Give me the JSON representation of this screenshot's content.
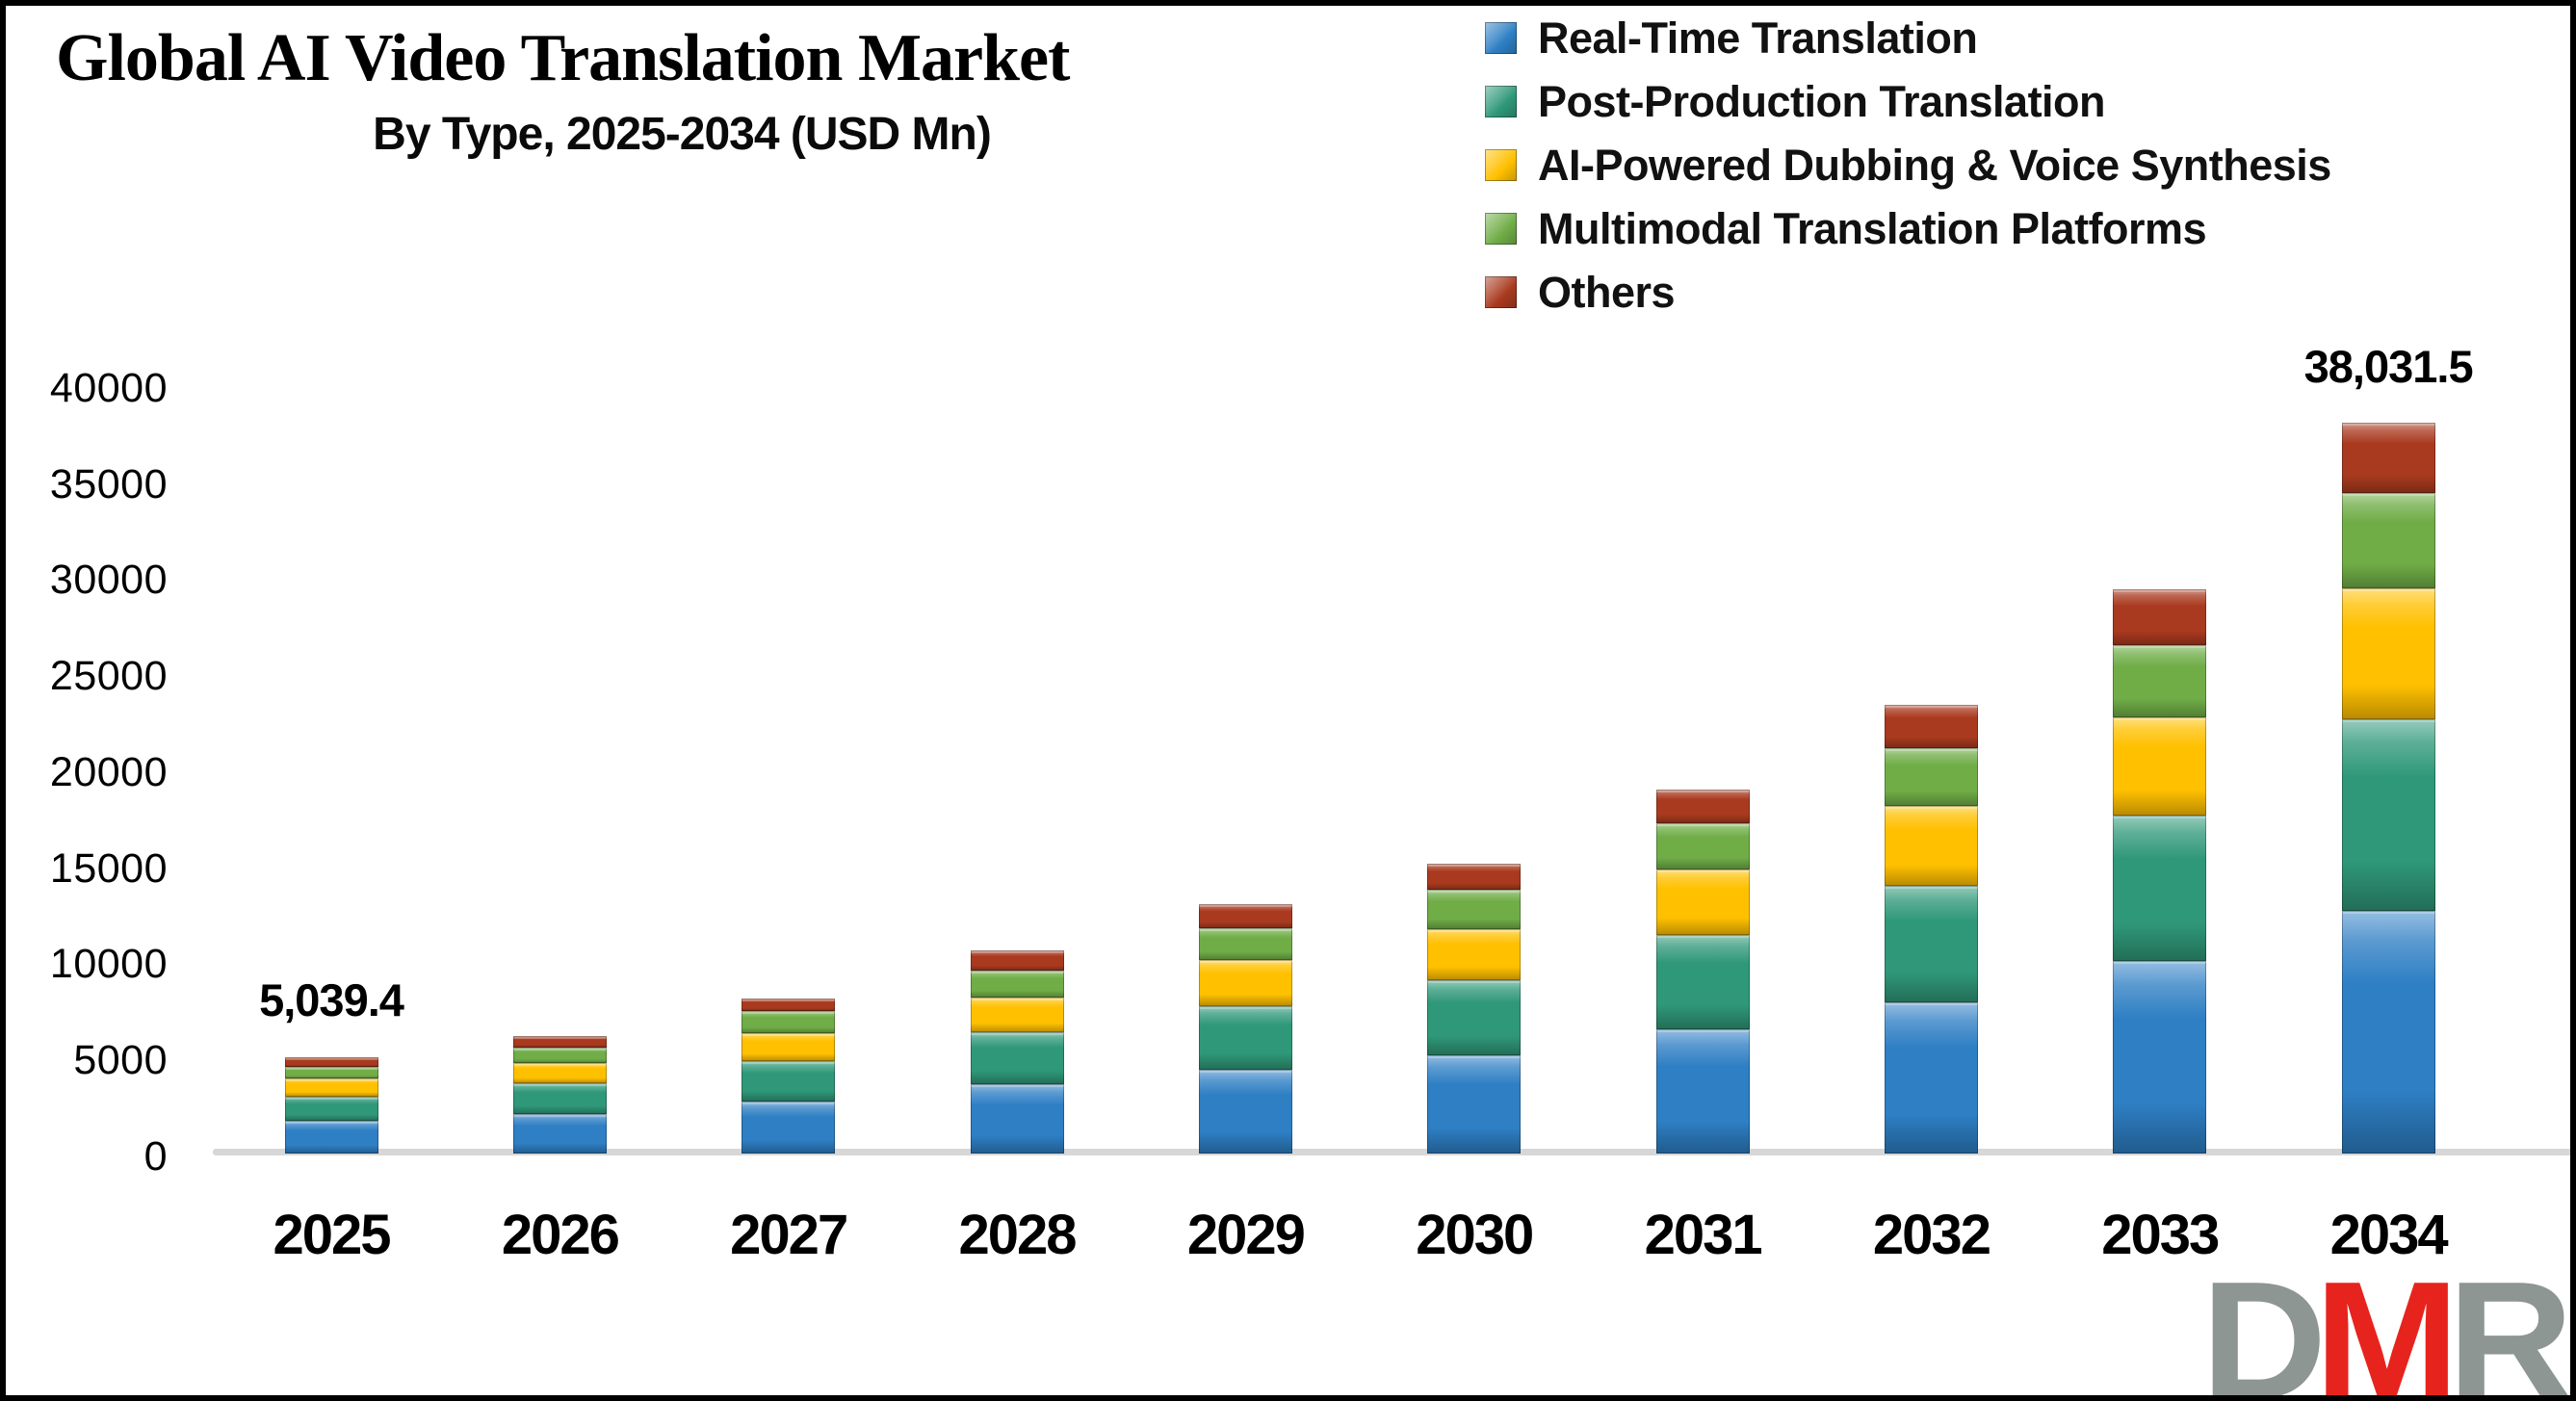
{
  "header": {
    "title": "Global AI Video Translation Market",
    "subtitle": "By Type, 2025-2034 (USD Mn)"
  },
  "legend": {
    "position": "top-right",
    "items": [
      {
        "label": "Real-Time Translation",
        "color": "#2E7FC4"
      },
      {
        "label": "Post-Production Translation",
        "color": "#2F9878"
      },
      {
        "label": "AI-Powered Dubbing & Voice Synthesis",
        "color": "#FFC000"
      },
      {
        "label": "Multimodal Translation Platforms",
        "color": "#70AD47"
      },
      {
        "label": "Others",
        "color": "#A93A1F"
      }
    ]
  },
  "chart_data": {
    "type": "bar",
    "stacked": true,
    "title": "Global AI Video Translation Market",
    "subtitle": "By Type, 2025-2034 (USD Mn)",
    "unit": "USD Mn",
    "categories": [
      "2025",
      "2026",
      "2027",
      "2028",
      "2029",
      "2030",
      "2031",
      "2032",
      "2033",
      "2034"
    ],
    "series": [
      {
        "name": "Real-Time Translation",
        "color": "#2E7FC4",
        "values": [
          1725,
          2060,
          2690,
          3595,
          4350,
          5105,
          6475,
          7865,
          10040,
          12620
        ]
      },
      {
        "name": "Post-Production Translation",
        "color": "#2F9878",
        "values": [
          1220,
          1620,
          2130,
          2730,
          3310,
          3930,
          4900,
          6055,
          7530,
          9990
        ]
      },
      {
        "name": "AI-Powered Dubbing & Voice Synthesis",
        "color": "#FFC000",
        "values": [
          955,
          1055,
          1455,
          1785,
          2410,
          2625,
          3430,
          4185,
          5135,
          6830
        ]
      },
      {
        "name": "Multimodal Translation Platforms",
        "color": "#70AD47",
        "values": [
          622,
          790,
          1135,
          1425,
          1670,
          2060,
          2375,
          3010,
          3785,
          4970
        ]
      },
      {
        "name": "Others",
        "color": "#A93A1F",
        "values": [
          517.4,
          580,
          675,
          1055,
          1255,
          1390,
          1775,
          2225,
          2875,
          3621.5
        ]
      }
    ],
    "totals": [
      5039.4,
      6105,
      8085,
      10590,
      12995,
      15110,
      18955,
      23340,
      29365,
      38031.5
    ],
    "data_labels": [
      {
        "category": "2025",
        "text": "5,039.4"
      },
      {
        "category": "2034",
        "text": "38,031.5"
      }
    ],
    "y_axis": {
      "min": 0,
      "max": 40000,
      "tick_step": 5000,
      "ticks_top_to_bottom": [
        "40000",
        "35000",
        "30000",
        "25000",
        "20000",
        "15000",
        "10000",
        "5000",
        "0"
      ]
    },
    "x_axis": {
      "labels": [
        "2025",
        "2026",
        "2027",
        "2028",
        "2029",
        "2030",
        "2031",
        "2032",
        "2033",
        "2034"
      ]
    },
    "grid": false,
    "legend_position": "top-right"
  },
  "logo": {
    "letters": [
      {
        "char": "D",
        "color": "#8E9693"
      },
      {
        "char": "M",
        "color": "#E7231D"
      },
      {
        "char": "R",
        "color": "#8E9693"
      }
    ]
  }
}
